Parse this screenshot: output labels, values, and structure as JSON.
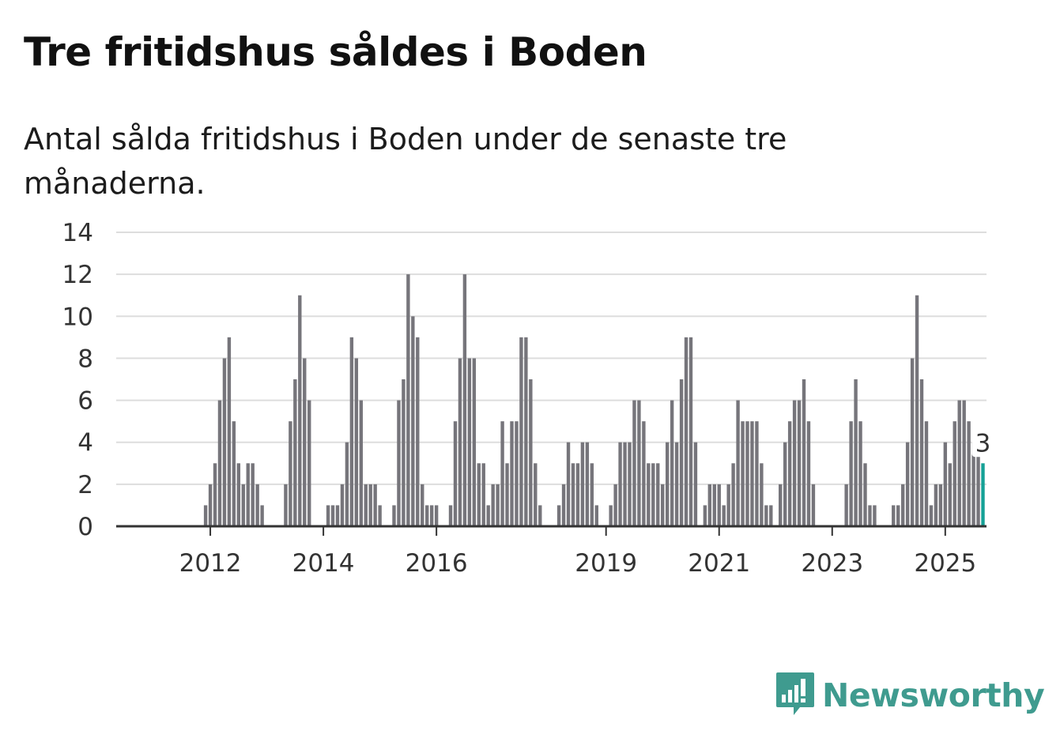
{
  "title": "Tre fritidshus såldes i Boden",
  "subtitle": "Antal sålda fritidshus i Boden under de senaste tre månaderna.",
  "brand": {
    "name": "Newsworthy",
    "color": "#3f9b8f"
  },
  "colors": {
    "bar": "#76757b",
    "highlight": "#16a196",
    "grid": "#dddddd",
    "axis": "#333333"
  },
  "chart_data": {
    "type": "bar",
    "title": "Tre fritidshus såldes i Boden",
    "xlabel": "",
    "ylabel": "",
    "ylim": [
      0,
      14
    ],
    "yticks": [
      0,
      2,
      4,
      6,
      8,
      10,
      12,
      14
    ],
    "grid": true,
    "xticks": [
      {
        "label": "2012",
        "index": 11
      },
      {
        "label": "2014",
        "index": 35
      },
      {
        "label": "2016",
        "index": 59
      },
      {
        "label": "2019",
        "index": 95
      },
      {
        "label": "2021",
        "index": 119
      },
      {
        "label": "2023",
        "index": 143
      },
      {
        "label": "2025",
        "index": 167
      }
    ],
    "values": [
      null,
      null,
      null,
      null,
      null,
      null,
      null,
      null,
      null,
      null,
      1,
      2,
      3,
      6,
      8,
      9,
      5,
      3,
      2,
      3,
      3,
      2,
      1,
      null,
      null,
      null,
      null,
      2,
      5,
      7,
      11,
      8,
      6,
      null,
      null,
      null,
      1,
      1,
      1,
      2,
      4,
      9,
      8,
      6,
      2,
      2,
      2,
      1,
      null,
      null,
      1,
      6,
      7,
      12,
      10,
      9,
      2,
      1,
      1,
      1,
      null,
      null,
      1,
      5,
      8,
      12,
      8,
      8,
      3,
      3,
      1,
      2,
      2,
      5,
      3,
      5,
      5,
      9,
      9,
      7,
      3,
      1,
      null,
      null,
      null,
      1,
      2,
      4,
      3,
      3,
      4,
      4,
      3,
      1,
      null,
      null,
      1,
      2,
      4,
      4,
      4,
      6,
      6,
      5,
      3,
      3,
      3,
      2,
      4,
      6,
      4,
      7,
      9,
      9,
      4,
      null,
      1,
      2,
      2,
      2,
      1,
      2,
      3,
      6,
      5,
      5,
      5,
      5,
      3,
      1,
      1,
      null,
      2,
      4,
      5,
      6,
      6,
      7,
      5,
      2,
      null,
      null,
      null,
      null,
      null,
      null,
      2,
      5,
      7,
      5,
      3,
      1,
      1,
      null,
      null,
      null,
      1,
      1,
      2,
      4,
      8,
      11,
      7,
      5,
      1,
      2,
      2,
      4,
      3,
      5,
      6,
      6,
      5,
      4,
      4,
      3
    ],
    "highlight": {
      "index": 175,
      "label": "3"
    }
  }
}
